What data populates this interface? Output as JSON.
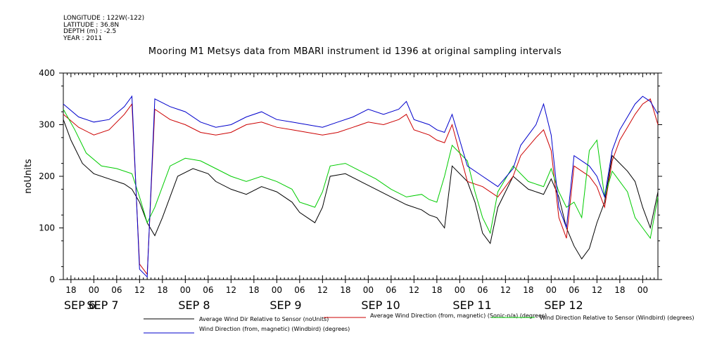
{
  "header": {
    "longitude": "LONGITUDE : 122W(-122)",
    "latitude": "LATITUDE : 36.8N",
    "depth": "DEPTH (m) : -2.5",
    "year": "YEAR : 2011"
  },
  "chart_data": {
    "type": "line",
    "title": "Mooring M1 Metsys data from MBARI instrument id 1396 at original sampling intervals",
    "ylabel": "noUnits",
    "xlabel": "",
    "ylim": [
      0,
      400
    ],
    "y_ticks": [
      0,
      100,
      200,
      300,
      400
    ],
    "x_range_hours": [
      0,
      156
    ],
    "x_hour_ticks": [
      "18",
      "00",
      "06",
      "12",
      "18",
      "00",
      "06",
      "12",
      "18",
      "00",
      "06",
      "12",
      "18",
      "00",
      "06",
      "12",
      "18",
      "00",
      "06",
      "12",
      "18",
      "00",
      "06",
      "12",
      "18",
      "00",
      "06",
      "12"
    ],
    "x_date_labels": [
      {
        "label": "SEP  6",
        "day": 6
      },
      {
        "label": "SEP  7",
        "day": 7
      },
      {
        "label": "SEP  8",
        "day": 8
      },
      {
        "label": "SEP  9",
        "day": 9
      },
      {
        "label": "SEP 10",
        "day": 10
      },
      {
        "label": "SEP 11",
        "day": 11
      },
      {
        "label": "SEP 12",
        "day": 12
      }
    ],
    "legend_placement": "bottom",
    "series": [
      {
        "name": "Average Wind Dir Relative to Sensor (noUnits)",
        "color": "#000000",
        "points": [
          [
            0,
            310
          ],
          [
            2,
            270
          ],
          [
            5,
            225
          ],
          [
            8,
            205
          ],
          [
            12,
            195
          ],
          [
            16,
            185
          ],
          [
            18,
            175
          ],
          [
            20,
            150
          ],
          [
            22,
            110
          ],
          [
            24,
            85
          ],
          [
            26,
            120
          ],
          [
            30,
            200
          ],
          [
            34,
            215
          ],
          [
            38,
            205
          ],
          [
            40,
            190
          ],
          [
            44,
            175
          ],
          [
            48,
            165
          ],
          [
            52,
            180
          ],
          [
            56,
            170
          ],
          [
            60,
            150
          ],
          [
            62,
            130
          ],
          [
            64,
            120
          ],
          [
            66,
            110
          ],
          [
            68,
            140
          ],
          [
            70,
            200
          ],
          [
            74,
            205
          ],
          [
            78,
            190
          ],
          [
            82,
            175
          ],
          [
            86,
            160
          ],
          [
            90,
            145
          ],
          [
            94,
            135
          ],
          [
            96,
            125
          ],
          [
            98,
            120
          ],
          [
            100,
            100
          ],
          [
            102,
            220
          ],
          [
            106,
            190
          ],
          [
            108,
            150
          ],
          [
            110,
            90
          ],
          [
            112,
            70
          ],
          [
            114,
            140
          ],
          [
            118,
            200
          ],
          [
            122,
            175
          ],
          [
            126,
            165
          ],
          [
            128,
            195
          ],
          [
            130,
            160
          ],
          [
            132,
            100
          ],
          [
            134,
            65
          ],
          [
            136,
            40
          ],
          [
            138,
            60
          ],
          [
            140,
            110
          ],
          [
            142,
            150
          ],
          [
            144,
            240
          ],
          [
            148,
            210
          ],
          [
            150,
            190
          ],
          [
            152,
            140
          ],
          [
            154,
            100
          ],
          [
            156,
            170
          ]
        ]
      },
      {
        "name": "Average Wind Direction (from, magnetic) (Sonic-n/a) (degrees)",
        "color": "#cc0000",
        "points": [
          [
            0,
            320
          ],
          [
            4,
            295
          ],
          [
            8,
            280
          ],
          [
            12,
            290
          ],
          [
            16,
            320
          ],
          [
            18,
            340
          ],
          [
            20,
            30
          ],
          [
            22,
            10
          ],
          [
            24,
            330
          ],
          [
            28,
            310
          ],
          [
            32,
            300
          ],
          [
            36,
            285
          ],
          [
            40,
            280
          ],
          [
            44,
            285
          ],
          [
            48,
            300
          ],
          [
            52,
            305
          ],
          [
            56,
            295
          ],
          [
            60,
            290
          ],
          [
            64,
            285
          ],
          [
            68,
            280
          ],
          [
            72,
            285
          ],
          [
            76,
            295
          ],
          [
            80,
            305
          ],
          [
            84,
            300
          ],
          [
            88,
            310
          ],
          [
            90,
            320
          ],
          [
            92,
            290
          ],
          [
            96,
            280
          ],
          [
            98,
            270
          ],
          [
            100,
            265
          ],
          [
            102,
            300
          ],
          [
            106,
            190
          ],
          [
            110,
            180
          ],
          [
            114,
            160
          ],
          [
            118,
            200
          ],
          [
            120,
            240
          ],
          [
            124,
            275
          ],
          [
            126,
            290
          ],
          [
            128,
            250
          ],
          [
            130,
            120
          ],
          [
            132,
            80
          ],
          [
            134,
            220
          ],
          [
            138,
            200
          ],
          [
            140,
            180
          ],
          [
            142,
            140
          ],
          [
            144,
            230
          ],
          [
            146,
            270
          ],
          [
            148,
            295
          ],
          [
            150,
            320
          ],
          [
            152,
            340
          ],
          [
            154,
            350
          ],
          [
            156,
            300
          ]
        ]
      },
      {
        "name": "Wind Direction Relative to Sensor (Windbird) (degrees)",
        "color": "#00cc00",
        "points": [
          [
            0,
            330
          ],
          [
            3,
            290
          ],
          [
            6,
            245
          ],
          [
            10,
            220
          ],
          [
            14,
            215
          ],
          [
            18,
            205
          ],
          [
            20,
            160
          ],
          [
            22,
            110
          ],
          [
            24,
            140
          ],
          [
            28,
            220
          ],
          [
            32,
            235
          ],
          [
            36,
            230
          ],
          [
            40,
            215
          ],
          [
            44,
            200
          ],
          [
            48,
            190
          ],
          [
            52,
            200
          ],
          [
            56,
            190
          ],
          [
            60,
            175
          ],
          [
            62,
            150
          ],
          [
            64,
            145
          ],
          [
            66,
            140
          ],
          [
            68,
            170
          ],
          [
            70,
            220
          ],
          [
            74,
            225
          ],
          [
            78,
            210
          ],
          [
            82,
            195
          ],
          [
            86,
            175
          ],
          [
            90,
            160
          ],
          [
            94,
            165
          ],
          [
            96,
            155
          ],
          [
            98,
            150
          ],
          [
            100,
            200
          ],
          [
            102,
            260
          ],
          [
            106,
            230
          ],
          [
            108,
            170
          ],
          [
            110,
            120
          ],
          [
            112,
            90
          ],
          [
            114,
            170
          ],
          [
            118,
            220
          ],
          [
            122,
            190
          ],
          [
            126,
            180
          ],
          [
            128,
            215
          ],
          [
            130,
            170
          ],
          [
            132,
            140
          ],
          [
            134,
            150
          ],
          [
            136,
            120
          ],
          [
            138,
            250
          ],
          [
            140,
            270
          ],
          [
            142,
            160
          ],
          [
            144,
            210
          ],
          [
            148,
            170
          ],
          [
            150,
            120
          ],
          [
            152,
            100
          ],
          [
            154,
            80
          ],
          [
            156,
            160
          ]
        ]
      },
      {
        "name": "Wind Direction (from, magnetic) (Windbird) (degrees)",
        "color": "#0000cc",
        "points": [
          [
            0,
            340
          ],
          [
            4,
            315
          ],
          [
            8,
            305
          ],
          [
            12,
            310
          ],
          [
            16,
            335
          ],
          [
            18,
            355
          ],
          [
            20,
            20
          ],
          [
            22,
            5
          ],
          [
            24,
            350
          ],
          [
            28,
            335
          ],
          [
            32,
            325
          ],
          [
            36,
            305
          ],
          [
            40,
            295
          ],
          [
            44,
            300
          ],
          [
            48,
            315
          ],
          [
            52,
            325
          ],
          [
            56,
            310
          ],
          [
            60,
            305
          ],
          [
            64,
            300
          ],
          [
            68,
            295
          ],
          [
            72,
            305
          ],
          [
            76,
            315
          ],
          [
            80,
            330
          ],
          [
            84,
            320
          ],
          [
            88,
            330
          ],
          [
            90,
            345
          ],
          [
            92,
            310
          ],
          [
            96,
            300
          ],
          [
            98,
            290
          ],
          [
            100,
            285
          ],
          [
            102,
            320
          ],
          [
            106,
            220
          ],
          [
            110,
            200
          ],
          [
            114,
            180
          ],
          [
            118,
            215
          ],
          [
            120,
            260
          ],
          [
            124,
            300
          ],
          [
            126,
            340
          ],
          [
            128,
            280
          ],
          [
            130,
            140
          ],
          [
            132,
            100
          ],
          [
            134,
            240
          ],
          [
            138,
            220
          ],
          [
            140,
            200
          ],
          [
            142,
            160
          ],
          [
            144,
            250
          ],
          [
            146,
            290
          ],
          [
            148,
            315
          ],
          [
            150,
            340
          ],
          [
            152,
            355
          ],
          [
            154,
            345
          ],
          [
            156,
            320
          ]
        ]
      }
    ]
  }
}
